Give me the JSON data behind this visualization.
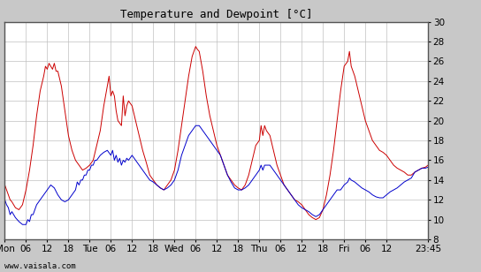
{
  "title": "Temperature and Dewpoint [°C]",
  "ylim": [
    8,
    30
  ],
  "yticks": [
    8,
    10,
    12,
    14,
    16,
    18,
    20,
    22,
    24,
    26,
    28,
    30
  ],
  "xtick_labels": [
    "Mon",
    "06",
    "12",
    "18",
    "Tue",
    "06",
    "12",
    "18",
    "Wed",
    "06",
    "12",
    "18",
    "Thu",
    "06",
    "12",
    "18",
    "Fri",
    "06",
    "12",
    "23:45"
  ],
  "xtick_positions": [
    0,
    6,
    12,
    18,
    24,
    30,
    36,
    42,
    48,
    54,
    60,
    66,
    72,
    78,
    84,
    90,
    96,
    102,
    108,
    119.75
  ],
  "watermark": "www.vaisala.com",
  "bg_color": "#c8c8c8",
  "plot_bg_color": "#ffffff",
  "grid_color": "#c0c0c0",
  "line_color_temp": "#cc0000",
  "line_color_dew": "#0000cc",
  "total_hours": 119.75,
  "temp_data": [
    [
      0,
      13.5
    ],
    [
      0.5,
      13.0
    ],
    [
      1,
      12.5
    ],
    [
      1.5,
      12.0
    ],
    [
      2,
      11.8
    ],
    [
      3,
      11.2
    ],
    [
      4,
      11.0
    ],
    [
      5,
      11.5
    ],
    [
      6,
      13.0
    ],
    [
      7,
      15.0
    ],
    [
      8,
      17.5
    ],
    [
      9,
      20.5
    ],
    [
      10,
      23.0
    ],
    [
      11,
      24.5
    ],
    [
      11.5,
      25.5
    ],
    [
      12,
      25.2
    ],
    [
      12.5,
      25.8
    ],
    [
      13,
      25.5
    ],
    [
      13.5,
      25.2
    ],
    [
      14,
      25.8
    ],
    [
      14.5,
      25.0
    ],
    [
      15,
      25.0
    ],
    [
      16,
      23.5
    ],
    [
      17,
      21.0
    ],
    [
      18,
      18.5
    ],
    [
      19,
      17.0
    ],
    [
      20,
      16.0
    ],
    [
      21,
      15.5
    ],
    [
      22,
      15.0
    ],
    [
      23,
      15.2
    ],
    [
      24,
      15.5
    ],
    [
      25,
      16.0
    ],
    [
      26,
      17.5
    ],
    [
      27,
      19.0
    ],
    [
      28,
      21.5
    ],
    [
      29,
      23.5
    ],
    [
      29.5,
      24.5
    ],
    [
      30,
      22.5
    ],
    [
      30.5,
      23.0
    ],
    [
      31,
      22.5
    ],
    [
      31.5,
      21.0
    ],
    [
      32,
      20.0
    ],
    [
      33,
      19.5
    ],
    [
      33.5,
      22.5
    ],
    [
      34,
      20.5
    ],
    [
      34.5,
      21.5
    ],
    [
      35,
      22.0
    ],
    [
      36,
      21.5
    ],
    [
      37,
      20.0
    ],
    [
      38,
      18.5
    ],
    [
      39,
      17.0
    ],
    [
      40,
      15.8
    ],
    [
      41,
      14.5
    ],
    [
      42,
      14.0
    ],
    [
      43,
      13.5
    ],
    [
      44,
      13.2
    ],
    [
      45,
      13.0
    ],
    [
      46,
      13.5
    ],
    [
      47,
      14.0
    ],
    [
      48,
      15.0
    ],
    [
      49,
      17.0
    ],
    [
      50,
      19.5
    ],
    [
      51,
      22.0
    ],
    [
      52,
      24.5
    ],
    [
      53,
      26.5
    ],
    [
      54,
      27.5
    ],
    [
      54.5,
      27.2
    ],
    [
      55,
      27.0
    ],
    [
      56,
      25.0
    ],
    [
      57,
      22.5
    ],
    [
      58,
      20.5
    ],
    [
      59,
      19.0
    ],
    [
      60,
      17.5
    ],
    [
      61,
      16.5
    ],
    [
      62,
      15.5
    ],
    [
      63,
      14.5
    ],
    [
      64,
      14.0
    ],
    [
      65,
      13.5
    ],
    [
      66,
      13.2
    ],
    [
      67,
      13.0
    ],
    [
      68,
      13.5
    ],
    [
      69,
      14.5
    ],
    [
      70,
      16.0
    ],
    [
      71,
      17.5
    ],
    [
      72,
      18.0
    ],
    [
      72.5,
      19.5
    ],
    [
      73,
      18.5
    ],
    [
      73.5,
      19.5
    ],
    [
      74,
      19.0
    ],
    [
      75,
      18.5
    ],
    [
      76,
      17.0
    ],
    [
      77,
      15.5
    ],
    [
      78,
      14.5
    ],
    [
      79,
      13.5
    ],
    [
      80,
      13.0
    ],
    [
      81,
      12.5
    ],
    [
      82,
      12.0
    ],
    [
      83,
      11.8
    ],
    [
      84,
      11.5
    ],
    [
      85,
      11.0
    ],
    [
      86,
      10.5
    ],
    [
      87,
      10.2
    ],
    [
      88,
      10.0
    ],
    [
      89,
      10.2
    ],
    [
      90,
      11.0
    ],
    [
      91,
      12.5
    ],
    [
      92,
      14.5
    ],
    [
      93,
      17.0
    ],
    [
      94,
      20.0
    ],
    [
      95,
      23.0
    ],
    [
      96,
      25.5
    ],
    [
      97,
      26.0
    ],
    [
      97.5,
      27.0
    ],
    [
      98,
      25.5
    ],
    [
      99,
      24.5
    ],
    [
      100,
      23.0
    ],
    [
      101,
      21.5
    ],
    [
      102,
      20.0
    ],
    [
      103,
      19.0
    ],
    [
      104,
      18.0
    ],
    [
      105,
      17.5
    ],
    [
      106,
      17.0
    ],
    [
      107,
      16.8
    ],
    [
      108,
      16.5
    ],
    [
      109,
      16.0
    ],
    [
      110,
      15.5
    ],
    [
      111,
      15.2
    ],
    [
      112,
      15.0
    ],
    [
      113,
      14.8
    ],
    [
      114,
      14.5
    ],
    [
      115,
      14.5
    ],
    [
      116,
      14.8
    ],
    [
      117,
      15.0
    ],
    [
      118,
      15.2
    ],
    [
      119,
      15.3
    ],
    [
      119.75,
      15.5
    ]
  ],
  "dew_data": [
    [
      0,
      12.0
    ],
    [
      0.5,
      11.5
    ],
    [
      1,
      11.2
    ],
    [
      1.5,
      10.5
    ],
    [
      2,
      10.8
    ],
    [
      3,
      10.2
    ],
    [
      4,
      9.8
    ],
    [
      5,
      9.5
    ],
    [
      6,
      9.5
    ],
    [
      6.5,
      10.0
    ],
    [
      7,
      9.8
    ],
    [
      7.5,
      10.5
    ],
    [
      8,
      10.5
    ],
    [
      9,
      11.5
    ],
    [
      10,
      12.0
    ],
    [
      11,
      12.5
    ],
    [
      12,
      13.0
    ],
    [
      13,
      13.5
    ],
    [
      14,
      13.2
    ],
    [
      15,
      12.5
    ],
    [
      16,
      12.0
    ],
    [
      17,
      11.8
    ],
    [
      18,
      12.0
    ],
    [
      19,
      12.5
    ],
    [
      20,
      13.0
    ],
    [
      20.5,
      13.8
    ],
    [
      21,
      13.5
    ],
    [
      21.5,
      14.0
    ],
    [
      22,
      14.0
    ],
    [
      22.5,
      14.5
    ],
    [
      23,
      14.5
    ],
    [
      23.5,
      15.0
    ],
    [
      24,
      15.0
    ],
    [
      24.5,
      15.5
    ],
    [
      25,
      15.5
    ],
    [
      25.5,
      16.0
    ],
    [
      26,
      16.0
    ],
    [
      27,
      16.5
    ],
    [
      28,
      16.8
    ],
    [
      29,
      17.0
    ],
    [
      30,
      16.5
    ],
    [
      30.5,
      17.0
    ],
    [
      31,
      16.0
    ],
    [
      31.5,
      16.5
    ],
    [
      32,
      15.8
    ],
    [
      32.5,
      16.2
    ],
    [
      33,
      15.5
    ],
    [
      33.5,
      16.0
    ],
    [
      34,
      15.8
    ],
    [
      34.5,
      16.2
    ],
    [
      35,
      16.0
    ],
    [
      36,
      16.5
    ],
    [
      37,
      16.0
    ],
    [
      38,
      15.5
    ],
    [
      39,
      15.0
    ],
    [
      40,
      14.5
    ],
    [
      41,
      14.0
    ],
    [
      42,
      13.8
    ],
    [
      43,
      13.5
    ],
    [
      44,
      13.2
    ],
    [
      45,
      13.0
    ],
    [
      46,
      13.2
    ],
    [
      47,
      13.5
    ],
    [
      48,
      14.0
    ],
    [
      49,
      15.0
    ],
    [
      50,
      16.5
    ],
    [
      51,
      17.5
    ],
    [
      52,
      18.5
    ],
    [
      53,
      19.0
    ],
    [
      54,
      19.5
    ],
    [
      55,
      19.5
    ],
    [
      56,
      19.0
    ],
    [
      57,
      18.5
    ],
    [
      58,
      18.0
    ],
    [
      59,
      17.5
    ],
    [
      60,
      17.0
    ],
    [
      61,
      16.5
    ],
    [
      62,
      15.5
    ],
    [
      63,
      14.5
    ],
    [
      64,
      13.8
    ],
    [
      65,
      13.2
    ],
    [
      66,
      13.0
    ],
    [
      67,
      13.0
    ],
    [
      68,
      13.2
    ],
    [
      69,
      13.5
    ],
    [
      70,
      14.0
    ],
    [
      71,
      14.5
    ],
    [
      72,
      15.0
    ],
    [
      72.5,
      15.5
    ],
    [
      73,
      15.0
    ],
    [
      73.5,
      15.5
    ],
    [
      74,
      15.5
    ],
    [
      75,
      15.5
    ],
    [
      76,
      15.0
    ],
    [
      77,
      14.5
    ],
    [
      78,
      14.0
    ],
    [
      79,
      13.5
    ],
    [
      80,
      13.0
    ],
    [
      81,
      12.5
    ],
    [
      82,
      12.0
    ],
    [
      83,
      11.5
    ],
    [
      84,
      11.2
    ],
    [
      85,
      11.0
    ],
    [
      86,
      10.8
    ],
    [
      87,
      10.5
    ],
    [
      88,
      10.3
    ],
    [
      89,
      10.5
    ],
    [
      90,
      11.0
    ],
    [
      91,
      11.5
    ],
    [
      92,
      12.0
    ],
    [
      93,
      12.5
    ],
    [
      94,
      13.0
    ],
    [
      95,
      13.0
    ],
    [
      96,
      13.5
    ],
    [
      97,
      13.8
    ],
    [
      97.5,
      14.2
    ],
    [
      98,
      14.0
    ],
    [
      99,
      13.8
    ],
    [
      100,
      13.5
    ],
    [
      101,
      13.2
    ],
    [
      102,
      13.0
    ],
    [
      103,
      12.8
    ],
    [
      104,
      12.5
    ],
    [
      105,
      12.3
    ],
    [
      106,
      12.2
    ],
    [
      107,
      12.2
    ],
    [
      108,
      12.5
    ],
    [
      109,
      12.8
    ],
    [
      110,
      13.0
    ],
    [
      111,
      13.2
    ],
    [
      112,
      13.5
    ],
    [
      113,
      13.8
    ],
    [
      114,
      14.0
    ],
    [
      115,
      14.2
    ],
    [
      116,
      14.8
    ],
    [
      117,
      15.0
    ],
    [
      118,
      15.2
    ],
    [
      119,
      15.2
    ],
    [
      119.75,
      15.3
    ]
  ]
}
